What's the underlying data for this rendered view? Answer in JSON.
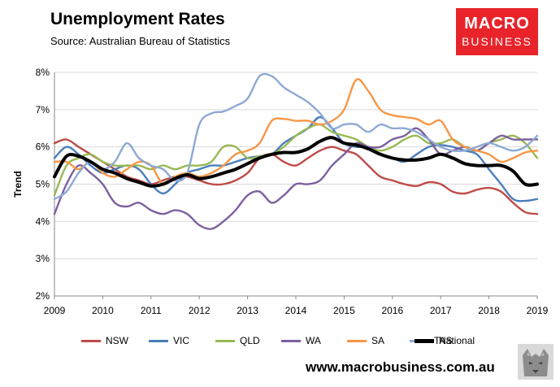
{
  "header": {
    "title": "Unemployment Rates",
    "source": "Source: Australian Bureau of Statistics"
  },
  "logo": {
    "line1": "MACRO",
    "line2": "BUSINESS"
  },
  "footer": {
    "website": "www.macrobusiness.com.au"
  },
  "colors": {
    "NSW": "#be4b48",
    "VIC": "#4a7ebb",
    "QLD": "#98b954",
    "WA": "#7d60a0",
    "SA": "#f79646",
    "TAS": "#8ea9d5",
    "National": "#000000"
  },
  "chart_data": {
    "type": "line",
    "title": "Unemployment Rates",
    "ylabel": "Trend",
    "xlabel": "",
    "xlim": [
      2009,
      2019
    ],
    "ylim": [
      2,
      8
    ],
    "x_ticks": [
      "2009",
      "2010",
      "2011",
      "2012",
      "2013",
      "2014",
      "2015",
      "2016",
      "2017",
      "2018",
      "2019"
    ],
    "y_ticks": [
      "2%",
      "3%",
      "4%",
      "5%",
      "6%",
      "7%",
      "8%"
    ],
    "legend_position": "bottom",
    "x": [
      2009.0,
      2009.25,
      2009.5,
      2009.75,
      2010.0,
      2010.25,
      2010.5,
      2010.75,
      2011.0,
      2011.25,
      2011.5,
      2011.75,
      2012.0,
      2012.25,
      2012.5,
      2012.75,
      2013.0,
      2013.25,
      2013.5,
      2013.75,
      2014.0,
      2014.25,
      2014.5,
      2014.75,
      2015.0,
      2015.25,
      2015.5,
      2015.75,
      2016.0,
      2016.25,
      2016.5,
      2016.75,
      2017.0,
      2017.25,
      2017.5,
      2017.75,
      2018.0,
      2018.25,
      2018.5,
      2018.75,
      2019.0
    ],
    "series": [
      {
        "name": "NSW",
        "values": [
          6.1,
          6.2,
          6.0,
          5.8,
          5.6,
          5.4,
          5.2,
          5.1,
          5.0,
          5.1,
          5.2,
          5.2,
          5.1,
          5.0,
          5.0,
          5.1,
          5.3,
          5.7,
          5.8,
          5.6,
          5.5,
          5.7,
          5.9,
          6.0,
          5.9,
          5.8,
          5.5,
          5.2,
          5.1,
          5.0,
          4.95,
          5.05,
          5.0,
          4.8,
          4.75,
          4.85,
          4.9,
          4.8,
          4.5,
          4.25,
          4.2
        ]
      },
      {
        "name": "VIC",
        "values": [
          5.7,
          6.0,
          5.8,
          5.5,
          5.3,
          5.4,
          5.5,
          5.4,
          5.0,
          4.75,
          5.0,
          5.3,
          5.4,
          5.5,
          5.5,
          5.6,
          5.7,
          5.75,
          5.8,
          6.1,
          6.3,
          6.5,
          6.8,
          6.5,
          6.1,
          6.0,
          6.0,
          5.8,
          5.7,
          5.6,
          5.8,
          6.0,
          6.05,
          6.0,
          5.9,
          5.8,
          5.4,
          5.0,
          4.6,
          4.55,
          4.6
        ]
      },
      {
        "name": "QLD",
        "values": [
          4.7,
          5.5,
          5.7,
          5.8,
          5.6,
          5.5,
          5.5,
          5.5,
          5.4,
          5.5,
          5.4,
          5.5,
          5.5,
          5.6,
          6.0,
          6.0,
          5.7,
          5.75,
          5.8,
          6.0,
          6.3,
          6.5,
          6.6,
          6.4,
          6.3,
          6.2,
          6.0,
          5.9,
          6.0,
          6.2,
          6.3,
          6.1,
          6.1,
          6.2,
          6.0,
          5.9,
          6.1,
          6.2,
          6.3,
          6.1,
          5.7
        ]
      },
      {
        "name": "WA",
        "values": [
          4.2,
          5.0,
          5.5,
          5.3,
          5.0,
          4.5,
          4.4,
          4.5,
          4.3,
          4.2,
          4.3,
          4.2,
          3.9,
          3.8,
          4.0,
          4.3,
          4.7,
          4.8,
          4.5,
          4.7,
          5.0,
          5.0,
          5.1,
          5.5,
          5.8,
          6.1,
          6.0,
          6.0,
          6.2,
          6.3,
          6.5,
          6.2,
          5.8,
          5.9,
          6.0,
          5.9,
          6.1,
          6.3,
          6.2,
          6.2,
          6.2
        ]
      },
      {
        "name": "SA",
        "values": [
          5.6,
          5.6,
          5.4,
          5.6,
          5.3,
          5.2,
          5.4,
          5.6,
          5.5,
          5.0,
          5.2,
          5.3,
          5.2,
          5.3,
          5.5,
          5.8,
          5.9,
          6.1,
          6.7,
          6.75,
          6.7,
          6.7,
          6.6,
          6.7,
          7.0,
          7.8,
          7.5,
          7.0,
          6.85,
          6.8,
          6.75,
          6.6,
          6.7,
          6.2,
          6.0,
          5.9,
          5.8,
          5.6,
          5.7,
          5.85,
          5.9
        ]
      },
      {
        "name": "TAS",
        "values": [
          4.6,
          4.8,
          5.3,
          5.6,
          5.4,
          5.6,
          6.1,
          5.7,
          5.5,
          5.4,
          5.1,
          5.3,
          6.6,
          6.9,
          6.95,
          7.1,
          7.3,
          7.9,
          7.9,
          7.6,
          7.4,
          7.2,
          6.9,
          6.5,
          6.6,
          6.6,
          6.4,
          6.6,
          6.5,
          6.5,
          6.4,
          6.2,
          6.0,
          5.9,
          5.9,
          6.0,
          6.1,
          6.0,
          5.9,
          6.0,
          6.3
        ]
      },
      {
        "name": "National",
        "values": [
          5.2,
          5.75,
          5.75,
          5.6,
          5.4,
          5.3,
          5.15,
          5.05,
          4.95,
          5.0,
          5.15,
          5.25,
          5.15,
          5.2,
          5.3,
          5.4,
          5.55,
          5.7,
          5.8,
          5.85,
          5.85,
          5.95,
          6.15,
          6.25,
          6.1,
          6.05,
          5.95,
          5.8,
          5.7,
          5.65,
          5.65,
          5.7,
          5.8,
          5.7,
          5.55,
          5.5,
          5.5,
          5.5,
          5.35,
          5.0,
          5.0
        ]
      }
    ]
  }
}
